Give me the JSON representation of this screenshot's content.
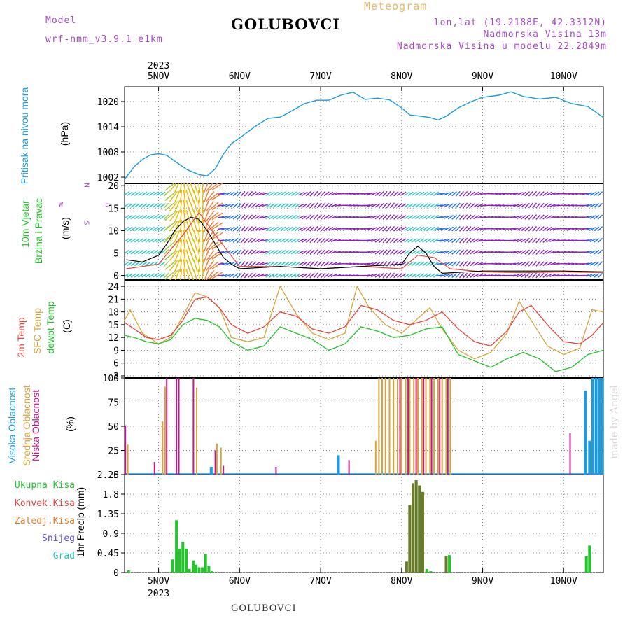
{
  "header": {
    "model_label": "Model",
    "model_name": "wrf-nmm_v3.9.1 e1km",
    "title": "GOLUBOVCI",
    "subtitle": "Meteogram",
    "lonlat": "lon,lat (19.2188E, 42.3312N)",
    "elevation": "Nadmorska Visina 13m",
    "model_elevation": "Nadmorska Visina u modelu 22.2849m",
    "footer": "GOLUBOVCI",
    "watermark": "made by Angel"
  },
  "colors": {
    "pressure": "#1e9be0",
    "temp2m": "#e8453c",
    "sfc": "#d9a33a",
    "dewpt": "#22c52a",
    "cloud_high": "#1e9be0",
    "cloud_mid": "#d9a33a",
    "cloud_low": "#c2188c",
    "precip_total": "#22c52a",
    "precip_conv": "#e8453c",
    "precip_frz": "#e87b2a",
    "snow": "#5a4de0",
    "grad": "#2cc6c0",
    "label_purple": "#a64ac9"
  },
  "chart_data": [
    {
      "type": "line",
      "panel": "pressure",
      "ylabel_left": "Pritisak na nivou mora",
      "ylabel_unit": "(hPa)",
      "yticks": [
        1002,
        1008,
        1014,
        1020
      ],
      "ylim": [
        1000.5,
        1023.5
      ],
      "xlim": [
        4.58,
        10.49
      ],
      "x_unit": "days (Nov 2023)",
      "series": [
        {
          "x": [
            4.58,
            4.7,
            4.8,
            4.9,
            5.0,
            5.1,
            5.2,
            5.35,
            5.5,
            5.6,
            5.7,
            5.8,
            5.9,
            6.0,
            6.2,
            6.35,
            6.5,
            6.6,
            6.8,
            6.95,
            7.1,
            7.25,
            7.4,
            7.55,
            7.7,
            7.85,
            8.0,
            8.1,
            8.2,
            8.35,
            8.45,
            8.55,
            8.7,
            8.85,
            9.0,
            9.2,
            9.35,
            9.5,
            9.7,
            9.9,
            10.1,
            10.3,
            10.49
          ],
          "y": [
            1001.5,
            1004.5,
            1006.2,
            1007.3,
            1007.6,
            1007.2,
            1005.8,
            1003.8,
            1002.6,
            1002.3,
            1004.0,
            1007.5,
            1010.0,
            1011.3,
            1014.2,
            1016.0,
            1016.3,
            1017.3,
            1019.5,
            1020.3,
            1020.3,
            1021.5,
            1022.2,
            1020.5,
            1020.8,
            1020.4,
            1018.5,
            1016.8,
            1016.6,
            1016.2,
            1015.6,
            1016.5,
            1018.5,
            1019.9,
            1021.0,
            1021.5,
            1022.3,
            1021.2,
            1020.6,
            1021.0,
            1019.5,
            1018.8,
            1016.2
          ]
        }
      ]
    },
    {
      "type": "line",
      "panel": "wind",
      "ylabel_left": "10m Vjetar",
      "ylabel_left2": "Brzina i Pravac",
      "ylabel_unit": "(m/s)",
      "compass": [
        "N",
        "E",
        "W",
        "S"
      ],
      "yticks": [
        0,
        5,
        10,
        15,
        20
      ],
      "ylim": [
        -1,
        20.5
      ],
      "series": [
        {
          "name": "speed",
          "x": [
            4.6,
            4.8,
            5.0,
            5.1,
            5.2,
            5.3,
            5.4,
            5.5,
            5.6,
            5.7,
            5.8,
            5.9,
            6.0,
            6.5,
            7.0,
            7.5,
            8.0,
            8.1,
            8.2,
            8.3,
            8.4,
            8.5,
            9.0,
            9.5,
            10.0,
            10.49
          ],
          "y": [
            3.5,
            3.0,
            4.5,
            7.0,
            10.0,
            12.0,
            13.0,
            12.5,
            10.0,
            7.0,
            4.0,
            2.5,
            1.5,
            2.0,
            1.5,
            2.0,
            2.5,
            5.0,
            6.5,
            5.0,
            2.0,
            0.5,
            1.0,
            1.0,
            1.0,
            0.8
          ]
        },
        {
          "name": "gust",
          "x": [
            4.6,
            5.0,
            5.3,
            5.5,
            5.7,
            6.0,
            6.5,
            7.0,
            7.5,
            8.0,
            8.2,
            8.4,
            8.6,
            9.0,
            9.5,
            10.0,
            10.49
          ],
          "y": [
            1.5,
            2.5,
            9.0,
            14.0,
            9.0,
            2.0,
            2.0,
            1.5,
            2.0,
            1.5,
            4.5,
            4.0,
            1.5,
            0.8,
            0.6,
            0.8,
            0.6
          ]
        }
      ]
    },
    {
      "type": "line",
      "panel": "temperature",
      "ylabel_left": "2m Temp",
      "ylabel_left2": "SFC Temp",
      "ylabel_left3": "dewpt Temp",
      "ylabel_unit": "(C)",
      "yticks": [
        3,
        6,
        9,
        12,
        15,
        18,
        21,
        24
      ],
      "ylim": [
        2.5,
        25.5
      ],
      "series": [
        {
          "name": "2m Temp",
          "x": [
            4.58,
            4.7,
            4.85,
            5.0,
            5.15,
            5.3,
            5.45,
            5.6,
            5.75,
            5.9,
            6.1,
            6.3,
            6.5,
            6.7,
            6.9,
            7.1,
            7.3,
            7.5,
            7.7,
            7.9,
            8.1,
            8.3,
            8.5,
            8.7,
            8.9,
            9.1,
            9.3,
            9.45,
            9.6,
            9.8,
            10.0,
            10.2,
            10.35,
            10.49
          ],
          "y": [
            15.5,
            14.0,
            12.0,
            11.5,
            12.5,
            16.0,
            21.0,
            21.5,
            19.0,
            15.0,
            13.0,
            14.5,
            18.0,
            17.0,
            14.0,
            13.0,
            14.5,
            19.5,
            18.5,
            16.0,
            15.0,
            16.0,
            18.0,
            14.0,
            11.0,
            10.0,
            13.5,
            18.0,
            19.5,
            15.0,
            11.0,
            10.5,
            12.5,
            15.5
          ]
        },
        {
          "name": "SFC Temp",
          "x": [
            4.58,
            4.65,
            4.8,
            5.0,
            5.15,
            5.3,
            5.45,
            5.6,
            5.75,
            5.9,
            6.1,
            6.3,
            6.5,
            6.7,
            6.9,
            7.1,
            7.3,
            7.45,
            7.6,
            7.8,
            8.0,
            8.2,
            8.35,
            8.5,
            8.7,
            8.9,
            9.1,
            9.3,
            9.45,
            9.6,
            9.8,
            10.0,
            10.2,
            10.35,
            10.49
          ],
          "y": [
            16.0,
            18.5,
            13.0,
            10.5,
            12.0,
            17.0,
            22.5,
            21.5,
            19.0,
            12.0,
            11.0,
            12.0,
            24.0,
            17.5,
            13.0,
            11.5,
            13.0,
            24.0,
            19.0,
            15.0,
            13.0,
            16.5,
            19.0,
            14.0,
            9.0,
            7.0,
            8.5,
            13.0,
            20.5,
            16.0,
            10.0,
            8.0,
            9.5,
            18.5,
            18.0
          ]
        },
        {
          "name": "dewpt Temp",
          "x": [
            4.58,
            4.7,
            4.85,
            5.0,
            5.15,
            5.3,
            5.45,
            5.6,
            5.75,
            5.9,
            6.1,
            6.3,
            6.5,
            6.7,
            6.9,
            7.1,
            7.3,
            7.5,
            7.7,
            7.9,
            8.1,
            8.3,
            8.5,
            8.7,
            8.9,
            9.1,
            9.3,
            9.5,
            9.7,
            9.9,
            10.1,
            10.3,
            10.49
          ],
          "y": [
            12.5,
            12.0,
            11.0,
            10.5,
            11.5,
            15.0,
            16.5,
            16.0,
            14.5,
            11.0,
            9.0,
            10.0,
            14.5,
            13.0,
            11.5,
            9.0,
            10.5,
            14.5,
            13.5,
            12.0,
            12.5,
            14.0,
            14.5,
            8.0,
            6.5,
            5.0,
            7.0,
            8.5,
            7.0,
            4.0,
            5.0,
            8.0,
            9.0
          ]
        }
      ]
    },
    {
      "type": "bar",
      "panel": "clouds",
      "ylabel_left": "Visoka Oblacnost",
      "ylabel_left2": "Srednja Oblacnost",
      "ylabel_left3": "Niska Oblacnost",
      "ylabel_unit": "(%)",
      "yticks": [
        0,
        25,
        50,
        75,
        100
      ],
      "ylim": [
        0,
        100
      ],
      "series": [
        {
          "name": "Visoka Oblacnost",
          "x": [
            5.65,
            7.22,
            10.27,
            10.32,
            10.36,
            10.4,
            10.44,
            10.48
          ],
          "values": [
            8,
            20,
            87,
            35,
            100,
            100,
            100,
            100
          ]
        },
        {
          "name": "Srednja Oblacnost",
          "x": [
            4.62,
            5.05,
            5.08,
            5.47,
            5.72,
            5.77,
            7.68,
            7.72,
            7.76,
            7.8,
            7.85,
            7.9,
            7.95,
            8.0,
            8.05,
            8.1,
            8.15,
            8.2,
            8.25,
            8.3,
            8.35,
            8.4,
            8.45,
            8.5,
            8.55,
            8.6
          ],
          "values": [
            31,
            55,
            91,
            90,
            32,
            28,
            35,
            100,
            100,
            100,
            100,
            100,
            100,
            100,
            100,
            100,
            100,
            100,
            100,
            100,
            100,
            100,
            100,
            100,
            100,
            100
          ]
        },
        {
          "name": "Niska Oblacnost",
          "x": [
            4.59,
            4.95,
            5.1,
            5.22,
            5.25,
            5.43,
            5.7,
            5.8,
            6.45,
            7.35,
            7.98,
            8.08,
            8.18,
            8.27,
            8.37,
            8.47,
            8.57,
            10.08
          ],
          "values": [
            51,
            13,
            100,
            100,
            100,
            100,
            25,
            9,
            8,
            15,
            100,
            100,
            100,
            100,
            100,
            100,
            100,
            43
          ]
        }
      ]
    },
    {
      "type": "bar",
      "panel": "precip",
      "ylabel_left": "1hr Precip (mm)",
      "legend": [
        "Ukupna Kisa",
        "Konvek.Kisa",
        "Zaledj.Kisa",
        "Snijeg",
        "Grad"
      ],
      "yticks": [
        0,
        0.45,
        0.9,
        1.35,
        1.8,
        2.25
      ],
      "ylim": [
        0,
        2.25
      ],
      "xticks": [
        "5NOV",
        "6NOV",
        "7NOV",
        "8NOV",
        "9NOV",
        "10NOV"
      ],
      "xtick_days": [
        5,
        6,
        7,
        8,
        9,
        10
      ],
      "top_year": "2023",
      "bottom_year": "2023",
      "series": [
        {
          "name": "Ukupna Kisa",
          "x": [
            4.63,
            5.17,
            5.22,
            5.26,
            5.3,
            5.34,
            5.38,
            5.43,
            5.46,
            5.5,
            5.54,
            5.58,
            5.62,
            5.66,
            8.06,
            8.1,
            8.14,
            8.18,
            8.22,
            8.26,
            8.31,
            8.36,
            8.55,
            8.59,
            10.28,
            10.32
          ],
          "values": [
            0.05,
            0.3,
            1.2,
            0.55,
            0.7,
            0.55,
            0.08,
            0.28,
            0.18,
            0.12,
            0.12,
            0.42,
            0.15,
            0.03,
            0.25,
            1.55,
            2.05,
            2.12,
            2.0,
            1.85,
            0.08,
            0.03,
            0.38,
            0.4,
            0.37,
            0.62
          ]
        },
        {
          "name": "Konvek.Kisa",
          "x": [
            8.06,
            8.1,
            8.14,
            8.18,
            8.22,
            8.26,
            8.55
          ],
          "values": [
            0.25,
            1.55,
            2.05,
            2.12,
            2.0,
            1.85,
            0.38
          ]
        }
      ]
    }
  ]
}
